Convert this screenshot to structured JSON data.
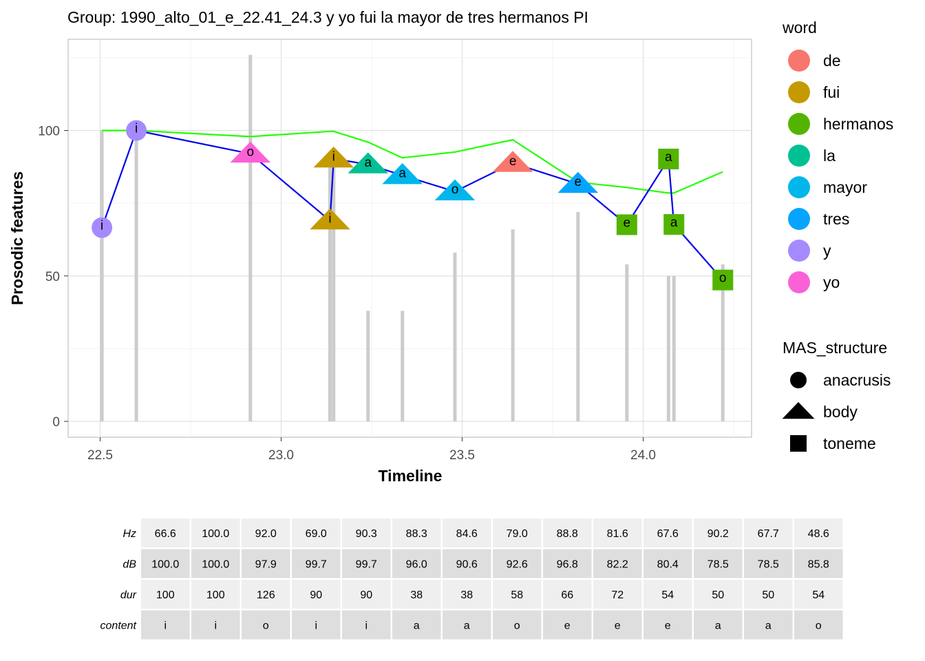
{
  "chart_data": {
    "type": "line",
    "title": "Group: 1990_alto_01_e_22.41_24.3 y yo fui la mayor de tres hermanos PI",
    "xlabel": "Timeline",
    "ylabel": "Prosodic features",
    "xlim": [
      22.41,
      24.3
    ],
    "ylim": [
      -5,
      126
    ],
    "x_ticks": [
      "22.5",
      "23.0",
      "23.5",
      "24.0"
    ],
    "x_tick_values": [
      22.5,
      23.0,
      23.5,
      24.0
    ],
    "y_ticks": [
      "0",
      "50",
      "100"
    ],
    "y_tick_values": [
      0,
      50,
      100
    ],
    "grid": true,
    "legend_position": "right",
    "legend_word_title": "word",
    "legend_shape_title": "MAS_structure",
    "word_legend": [
      {
        "label": "de",
        "color": "#F8766D"
      },
      {
        "label": "fui",
        "color": "#C49A00"
      },
      {
        "label": "hermanos",
        "color": "#53B400"
      },
      {
        "label": "la",
        "color": "#00C094"
      },
      {
        "label": "mayor",
        "color": "#00B6EB"
      },
      {
        "label": "tres",
        "color": "#06A4FF"
      },
      {
        "label": "y",
        "color": "#A58AFF"
      },
      {
        "label": "yo",
        "color": "#FB61D7"
      }
    ],
    "shape_legend": [
      {
        "label": "anacrusis",
        "shape": "circle"
      },
      {
        "label": "body",
        "shape": "triangle"
      },
      {
        "label": "toneme",
        "shape": "square"
      }
    ],
    "series": [
      {
        "role": "Hz",
        "color": "#0000EE",
        "x": [
          22.505,
          22.6,
          22.915,
          23.135,
          23.145,
          23.24,
          23.335,
          23.48,
          23.64,
          23.82,
          23.955,
          24.07,
          24.085,
          24.22
        ],
        "y": [
          66.6,
          100.0,
          92.0,
          69.0,
          90.3,
          88.3,
          84.6,
          79.0,
          88.8,
          81.6,
          67.6,
          90.2,
          67.7,
          48.6
        ]
      },
      {
        "role": "dB",
        "color": "#22FF00",
        "x": [
          22.505,
          22.6,
          22.915,
          23.135,
          23.145,
          23.24,
          23.335,
          23.48,
          23.64,
          23.82,
          23.955,
          24.07,
          24.085,
          24.22
        ],
        "y": [
          100.0,
          100.0,
          97.9,
          99.7,
          99.7,
          96.0,
          90.6,
          92.6,
          96.8,
          82.2,
          80.4,
          78.5,
          78.5,
          85.8
        ]
      },
      {
        "role": "dur",
        "color": "#CCCCCC",
        "type": "bar",
        "x": [
          22.505,
          22.6,
          22.915,
          23.135,
          23.145,
          23.24,
          23.335,
          23.48,
          23.64,
          23.82,
          23.955,
          24.07,
          24.085,
          24.22
        ],
        "y": [
          100,
          100,
          126,
          90,
          90,
          38,
          38,
          58,
          66,
          72,
          54,
          50,
          50,
          54
        ]
      }
    ],
    "points": [
      {
        "x": 22.505,
        "y": 66.6,
        "label": "i",
        "word": "y",
        "shape": "circle"
      },
      {
        "x": 22.6,
        "y": 100.0,
        "label": "i",
        "word": "y",
        "shape": "circle"
      },
      {
        "x": 22.915,
        "y": 92.0,
        "label": "o",
        "word": "yo",
        "shape": "triangle"
      },
      {
        "x": 23.135,
        "y": 69.0,
        "label": "i",
        "word": "fui",
        "shape": "triangle"
      },
      {
        "x": 23.145,
        "y": 90.3,
        "label": "i",
        "word": "fui",
        "shape": "triangle"
      },
      {
        "x": 23.24,
        "y": 88.3,
        "label": "a",
        "word": "la",
        "shape": "triangle"
      },
      {
        "x": 23.335,
        "y": 84.6,
        "label": "a",
        "word": "mayor",
        "shape": "triangle"
      },
      {
        "x": 23.48,
        "y": 79.0,
        "label": "o",
        "word": "mayor",
        "shape": "triangle"
      },
      {
        "x": 23.64,
        "y": 88.8,
        "label": "e",
        "word": "de",
        "shape": "triangle"
      },
      {
        "x": 23.82,
        "y": 81.6,
        "label": "e",
        "word": "tres",
        "shape": "triangle"
      },
      {
        "x": 23.955,
        "y": 67.6,
        "label": "e",
        "word": "hermanos",
        "shape": "square"
      },
      {
        "x": 24.07,
        "y": 90.2,
        "label": "a",
        "word": "hermanos",
        "shape": "square"
      },
      {
        "x": 24.085,
        "y": 67.7,
        "label": "a",
        "word": "hermanos",
        "shape": "square"
      },
      {
        "x": 24.22,
        "y": 48.6,
        "label": "o",
        "word": "hermanos",
        "shape": "square"
      }
    ],
    "table": {
      "rows": [
        {
          "name": "Hz",
          "values": [
            "66.6",
            "100.0",
            "92.0",
            "69.0",
            "90.3",
            "88.3",
            "84.6",
            "79.0",
            "88.8",
            "81.6",
            "67.6",
            "90.2",
            "67.7",
            "48.6"
          ]
        },
        {
          "name": "dB",
          "values": [
            "100.0",
            "100.0",
            "97.9",
            "99.7",
            "99.7",
            "96.0",
            "90.6",
            "92.6",
            "96.8",
            "82.2",
            "80.4",
            "78.5",
            "78.5",
            "85.8"
          ]
        },
        {
          "name": "dur",
          "values": [
            "100",
            "100",
            "126",
            "90",
            "90",
            "38",
            "38",
            "58",
            "66",
            "72",
            "54",
            "50",
            "50",
            "54"
          ]
        },
        {
          "name": "content",
          "values": [
            "i",
            "i",
            "o",
            "i",
            "i",
            "a",
            "a",
            "o",
            "e",
            "e",
            "e",
            "a",
            "a",
            "o"
          ]
        }
      ]
    }
  }
}
